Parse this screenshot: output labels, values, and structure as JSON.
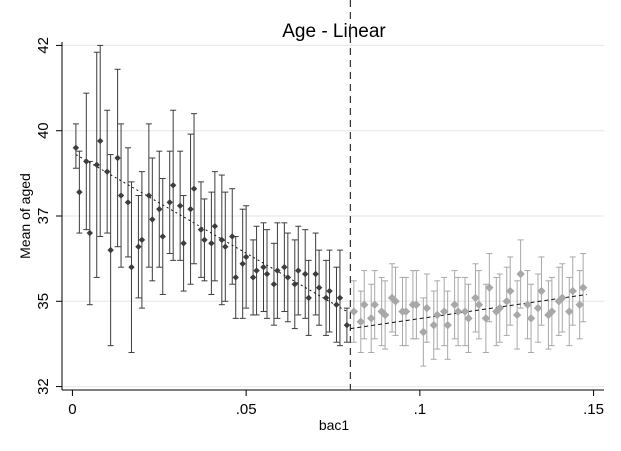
{
  "chart_data": {
    "type": "scatter",
    "title": "Age - Linear",
    "xlabel": "bac1",
    "ylabel": "Mean of aged",
    "xlim": [
      -0.003,
      0.153
    ],
    "ylim": [
      31.9,
      42.1
    ],
    "x_ticks": [
      0,
      0.05,
      0.1,
      0.15
    ],
    "x_tick_labels": [
      "0",
      ".05",
      ".1",
      ".15"
    ],
    "y_ticks": [
      32,
      34.5,
      37,
      39.5,
      42
    ],
    "y_tick_labels": [
      "32",
      "35",
      "37",
      "40",
      "42"
    ],
    "grid": true,
    "cutoff": 0.08,
    "left_color": "#3d3d3d",
    "right_color": "#a8a8a8",
    "left_fit": {
      "x": [
        0.001,
        0.079
      ],
      "y": [
        38.8,
        34.2
      ]
    },
    "right_fit": {
      "x": [
        0.08,
        0.148
      ],
      "y": [
        33.7,
        34.7
      ]
    },
    "left_series": {
      "x": [
        0.001,
        0.002,
        0.004,
        0.005,
        0.007,
        0.008,
        0.01,
        0.011,
        0.013,
        0.014,
        0.016,
        0.017,
        0.019,
        0.02,
        0.022,
        0.023,
        0.025,
        0.026,
        0.028,
        0.029,
        0.031,
        0.032,
        0.034,
        0.035,
        0.037,
        0.038,
        0.04,
        0.041,
        0.043,
        0.044,
        0.046,
        0.047,
        0.049,
        0.05,
        0.052,
        0.053,
        0.055,
        0.056,
        0.058,
        0.059,
        0.061,
        0.062,
        0.064,
        0.065,
        0.067,
        0.068,
        0.07,
        0.071,
        0.073,
        0.074,
        0.076,
        0.077,
        0.079
      ],
      "mean": [
        39.0,
        37.7,
        38.6,
        36.5,
        38.5,
        39.2,
        38.3,
        36.0,
        38.7,
        37.6,
        37.4,
        35.5,
        36.1,
        36.3,
        37.6,
        36.9,
        37.2,
        36.4,
        37.4,
        37.9,
        37.3,
        36.2,
        37.2,
        37.8,
        36.6,
        36.3,
        36.2,
        36.7,
        36.3,
        36.1,
        36.4,
        35.2,
        35.6,
        35.8,
        35.2,
        35.4,
        35.5,
        35.3,
        35.0,
        35.4,
        35.5,
        35.2,
        35.0,
        35.4,
        35.3,
        34.6,
        35.3,
        34.9,
        34.6,
        34.8,
        34.4,
        34.6,
        33.8
      ],
      "lower": [
        38.4,
        36.5,
        36.6,
        34.4,
        35.2,
        36.4,
        36.5,
        33.2,
        36.1,
        35.5,
        35.8,
        33.0,
        34.6,
        34.3,
        35.5,
        35.1,
        35.5,
        34.7,
        35.9,
        35.7,
        35.7,
        34.8,
        35.0,
        35.6,
        35.2,
        35.1,
        34.7,
        35.1,
        34.4,
        34.5,
        35.0,
        34.0,
        34.0,
        34.3,
        34.1,
        34.1,
        34.2,
        34.0,
        33.8,
        34.0,
        34.2,
        33.9,
        33.7,
        34.1,
        34.0,
        33.5,
        34.1,
        33.8,
        33.5,
        33.6,
        33.3,
        33.2,
        33.3
      ],
      "upper": [
        39.7,
        38.9,
        40.6,
        38.6,
        41.8,
        42.0,
        40.1,
        38.8,
        41.3,
        39.7,
        39.0,
        38.0,
        37.6,
        38.3,
        39.7,
        38.7,
        38.9,
        38.1,
        38.9,
        40.1,
        38.9,
        37.6,
        39.4,
        40.0,
        38.0,
        37.5,
        37.7,
        38.3,
        38.2,
        37.7,
        37.8,
        36.4,
        37.2,
        37.3,
        36.3,
        36.7,
        36.8,
        36.6,
        36.2,
        36.8,
        36.8,
        36.5,
        36.3,
        36.7,
        36.6,
        35.7,
        36.5,
        36.0,
        35.7,
        36.0,
        35.5,
        36.0,
        34.3
      ]
    },
    "right_series": {
      "x": [
        0.081,
        0.083,
        0.084,
        0.086,
        0.087,
        0.089,
        0.09,
        0.092,
        0.093,
        0.095,
        0.096,
        0.098,
        0.099,
        0.101,
        0.102,
        0.104,
        0.105,
        0.107,
        0.108,
        0.11,
        0.111,
        0.113,
        0.114,
        0.116,
        0.117,
        0.119,
        0.12,
        0.122,
        0.123,
        0.125,
        0.126,
        0.128,
        0.129,
        0.131,
        0.132,
        0.134,
        0.135,
        0.137,
        0.138,
        0.14,
        0.141,
        0.143,
        0.144,
        0.146,
        0.147
      ],
      "mean": [
        34.2,
        33.9,
        34.4,
        34.0,
        34.4,
        34.2,
        34.1,
        34.6,
        34.5,
        34.2,
        34.2,
        34.4,
        34.4,
        33.6,
        34.3,
        33.8,
        34.1,
        34.2,
        33.8,
        34.4,
        34.2,
        34.2,
        34.0,
        34.6,
        34.4,
        34.0,
        34.9,
        34.2,
        34.3,
        34.5,
        34.8,
        34.1,
        35.3,
        34.4,
        34.0,
        34.3,
        34.8,
        34.1,
        34.2,
        34.5,
        34.6,
        34.2,
        34.8,
        34.4,
        34.9
      ],
      "lower": [
        33.3,
        33.0,
        33.4,
        33.0,
        33.4,
        33.2,
        33.1,
        33.6,
        33.5,
        33.2,
        33.2,
        33.4,
        33.4,
        32.6,
        33.3,
        32.8,
        33.1,
        33.2,
        32.8,
        33.4,
        33.2,
        33.2,
        33.0,
        33.6,
        33.4,
        33.0,
        33.9,
        33.2,
        33.3,
        33.5,
        33.8,
        33.1,
        34.3,
        33.4,
        33.0,
        33.3,
        33.8,
        33.1,
        33.2,
        33.5,
        33.6,
        33.2,
        33.8,
        33.4,
        33.9
      ],
      "upper": [
        35.1,
        34.8,
        35.4,
        35.0,
        35.4,
        35.2,
        35.1,
        35.6,
        35.5,
        35.2,
        35.2,
        35.4,
        35.4,
        34.6,
        35.3,
        34.8,
        35.1,
        35.2,
        34.8,
        35.4,
        35.2,
        35.2,
        35.0,
        35.6,
        35.4,
        35.0,
        35.9,
        35.2,
        35.3,
        35.5,
        35.8,
        35.1,
        36.3,
        35.4,
        35.0,
        35.3,
        35.8,
        35.1,
        35.2,
        35.5,
        35.6,
        35.2,
        35.8,
        35.4,
        35.9
      ]
    }
  }
}
